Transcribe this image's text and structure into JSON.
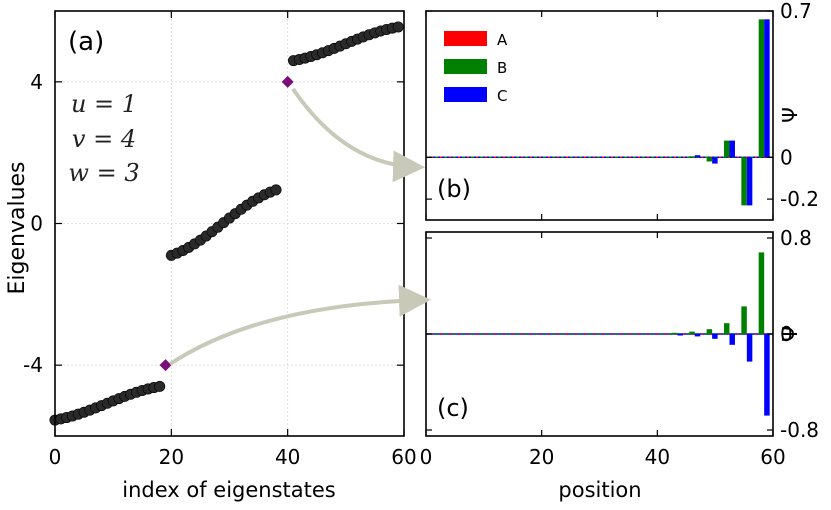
{
  "chart_data": [
    {
      "panel": "a",
      "panel_label": "(a)",
      "type": "scatter",
      "xlabel": "index of eigenstates",
      "ylabel": "Eigenvalues",
      "xlim": [
        0,
        60
      ],
      "ylim": [
        -6,
        6
      ],
      "xticks": [
        0,
        20,
        40,
        60
      ],
      "yticks": [
        -4,
        0,
        4
      ],
      "xtick_labels": [
        "0",
        "20",
        "40",
        "60"
      ],
      "ytick_labels": [
        "-4",
        "0",
        "4"
      ],
      "params": [
        "u = 1",
        "v = 4",
        "w = 3"
      ],
      "marker_color": "#2a2a2a",
      "highlight_color": "#7a0f7a",
      "arrow_color": "#c8c9b8",
      "band_lower": {
        "x_start": 0,
        "x_end": 18,
        "y_start": -5.55,
        "y_end": -4.6
      },
      "band_middle": {
        "x_start": 20,
        "x_end": 38,
        "y_start": -0.9,
        "y_end": 0.95
      },
      "band_upper": {
        "x_start": 41,
        "x_end": 59,
        "y_start": 4.6,
        "y_end": 5.55
      },
      "highlighted": [
        {
          "x": 19,
          "y": -4.0,
          "points_to": "c"
        },
        {
          "x": 40,
          "y": 4.0,
          "points_to": "b"
        }
      ]
    },
    {
      "panel": "b",
      "panel_label": "(b)",
      "type": "bar",
      "xlabel": "",
      "ylabel": "Ψ",
      "xlim": [
        0,
        60
      ],
      "ylim": [
        -0.3,
        0.7
      ],
      "yticks": [
        -0.2,
        0,
        0.7
      ],
      "ytick_labels": [
        "-0.2",
        "0",
        "0.7"
      ],
      "legend": [
        {
          "name": "A",
          "color": "#ff0000"
        },
        {
          "name": "B",
          "color": "#008000"
        },
        {
          "name": "C",
          "color": "#0000ff"
        }
      ],
      "legend_position": "top-left",
      "series": [
        {
          "name": "A",
          "x": [
            46,
            49,
            52,
            55,
            58
          ],
          "values": [
            0,
            0,
            0,
            0,
            0
          ]
        },
        {
          "name": "B",
          "x": [
            46,
            49,
            52,
            55,
            58
          ],
          "values": [
            0.005,
            -0.02,
            0.08,
            -0.23,
            0.66
          ]
        },
        {
          "name": "C",
          "x": [
            46,
            49,
            52,
            55,
            58
          ],
          "values": [
            0.01,
            -0.03,
            0.08,
            -0.23,
            0.66
          ]
        }
      ]
    },
    {
      "panel": "c",
      "panel_label": "(c)",
      "type": "bar",
      "xlabel": "position",
      "ylabel": "Ψ",
      "xlim": [
        0,
        60
      ],
      "ylim": [
        -0.85,
        0.85
      ],
      "xticks": [
        0,
        20,
        40,
        60
      ],
      "xtick_labels": [
        "0",
        "20",
        "40",
        "60"
      ],
      "yticks": [
        -0.8,
        0,
        0.8
      ],
      "ytick_labels": [
        "-0.8",
        "0",
        "0.8"
      ],
      "series": [
        {
          "name": "A",
          "x": [
            43,
            46,
            49,
            52,
            55,
            58
          ],
          "values": [
            0,
            0,
            0,
            0,
            0,
            0
          ]
        },
        {
          "name": "B",
          "x": [
            43,
            46,
            49,
            52,
            55,
            58
          ],
          "values": [
            0.01,
            0.02,
            0.04,
            0.09,
            0.23,
            0.68
          ]
        },
        {
          "name": "C",
          "x": [
            43,
            46,
            49,
            52,
            55,
            58
          ],
          "values": [
            -0.01,
            -0.02,
            -0.04,
            -0.09,
            -0.23,
            -0.68
          ]
        }
      ]
    }
  ]
}
